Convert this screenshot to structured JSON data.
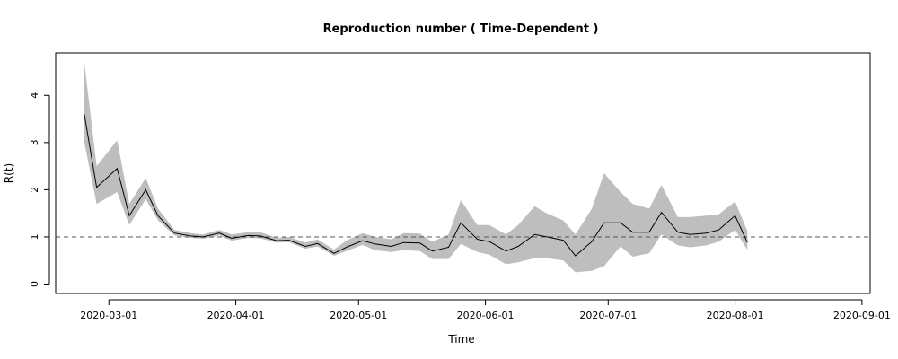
{
  "chart_data": {
    "type": "line",
    "title": "Reproduction number ( Time-Dependent )",
    "xlabel": "Time",
    "ylabel": "R(t)",
    "xlim": [
      "2020-02-17",
      "2020-09-03"
    ],
    "ylim": [
      -0.2,
      4.9
    ],
    "x_ticks": [
      "2020-03-01",
      "2020-04-01",
      "2020-05-01",
      "2020-06-01",
      "2020-07-01",
      "2020-08-01",
      "2020-09-01"
    ],
    "y_ticks": [
      0,
      1,
      2,
      3,
      4
    ],
    "reference_line": {
      "y": 1,
      "style": "dashed"
    },
    "grid": false,
    "colors": {
      "line": "#000000",
      "band": "#bebebe",
      "reference": "#555555"
    },
    "x": [
      "2020-02-24",
      "2020-02-27",
      "2020-03-03",
      "2020-03-06",
      "2020-03-10",
      "2020-03-13",
      "2020-03-17",
      "2020-03-21",
      "2020-03-24",
      "2020-03-28",
      "2020-03-31",
      "2020-04-04",
      "2020-04-07",
      "2020-04-11",
      "2020-04-14",
      "2020-04-18",
      "2020-04-21",
      "2020-04-25",
      "2020-04-28",
      "2020-05-02",
      "2020-05-05",
      "2020-05-09",
      "2020-05-12",
      "2020-05-16",
      "2020-05-19",
      "2020-05-23",
      "2020-05-26",
      "2020-05-30",
      "2020-06-02",
      "2020-06-06",
      "2020-06-09",
      "2020-06-13",
      "2020-06-16",
      "2020-06-20",
      "2020-06-23",
      "2020-06-27",
      "2020-06-30",
      "2020-07-04",
      "2020-07-07",
      "2020-07-11",
      "2020-07-14",
      "2020-07-18",
      "2020-07-21",
      "2020-07-25",
      "2020-07-28",
      "2020-08-01",
      "2020-08-04",
      "2020-08-08",
      "2020-08-11",
      "2020-08-15",
      "2020-08-18",
      "2020-08-22",
      "2020-08-25"
    ],
    "series": [
      {
        "values": [
          3.6,
          2.05,
          2.45,
          1.45,
          2.0,
          1.45,
          1.08,
          1.02,
          1.0,
          1.08,
          0.97,
          1.03,
          1.02,
          0.92,
          0.93,
          0.8,
          0.86,
          0.65,
          0.78,
          0.92,
          0.85,
          0.8,
          0.88,
          0.87,
          0.7,
          0.78,
          1.3,
          0.95,
          0.9,
          0.7,
          0.8,
          1.05,
          1.0,
          0.93,
          0.6,
          0.9,
          1.3,
          1.3,
          1.1,
          1.1,
          1.52,
          1.1,
          1.05,
          1.08,
          1.15,
          1.45,
          0.88,
          null,
          null,
          null,
          null,
          null,
          null
        ],
        "lower": [
          3.0,
          1.7,
          1.95,
          1.25,
          1.8,
          1.35,
          1.03,
          0.98,
          0.96,
          1.03,
          0.92,
          0.98,
          0.97,
          0.88,
          0.89,
          0.75,
          0.8,
          0.6,
          0.7,
          0.83,
          0.72,
          0.68,
          0.72,
          0.7,
          0.53,
          0.53,
          0.85,
          0.68,
          0.62,
          0.42,
          0.46,
          0.55,
          0.55,
          0.5,
          0.25,
          0.28,
          0.38,
          0.8,
          0.58,
          0.65,
          1.05,
          0.82,
          0.78,
          0.82,
          0.9,
          1.15,
          0.72,
          null,
          null,
          null,
          null,
          null,
          null
        ],
        "upper": [
          4.7,
          2.5,
          3.05,
          1.7,
          2.25,
          1.6,
          1.15,
          1.08,
          1.05,
          1.15,
          1.05,
          1.1,
          1.1,
          0.98,
          1.0,
          0.88,
          0.95,
          0.73,
          0.92,
          1.08,
          1.0,
          0.95,
          1.08,
          1.07,
          0.9,
          1.05,
          1.78,
          1.25,
          1.25,
          1.05,
          1.25,
          1.65,
          1.5,
          1.35,
          1.05,
          1.6,
          2.35,
          1.95,
          1.7,
          1.6,
          2.1,
          1.42,
          1.42,
          1.45,
          1.48,
          1.75,
          1.12,
          null,
          null,
          null,
          null,
          null,
          null
        ]
      }
    ]
  }
}
